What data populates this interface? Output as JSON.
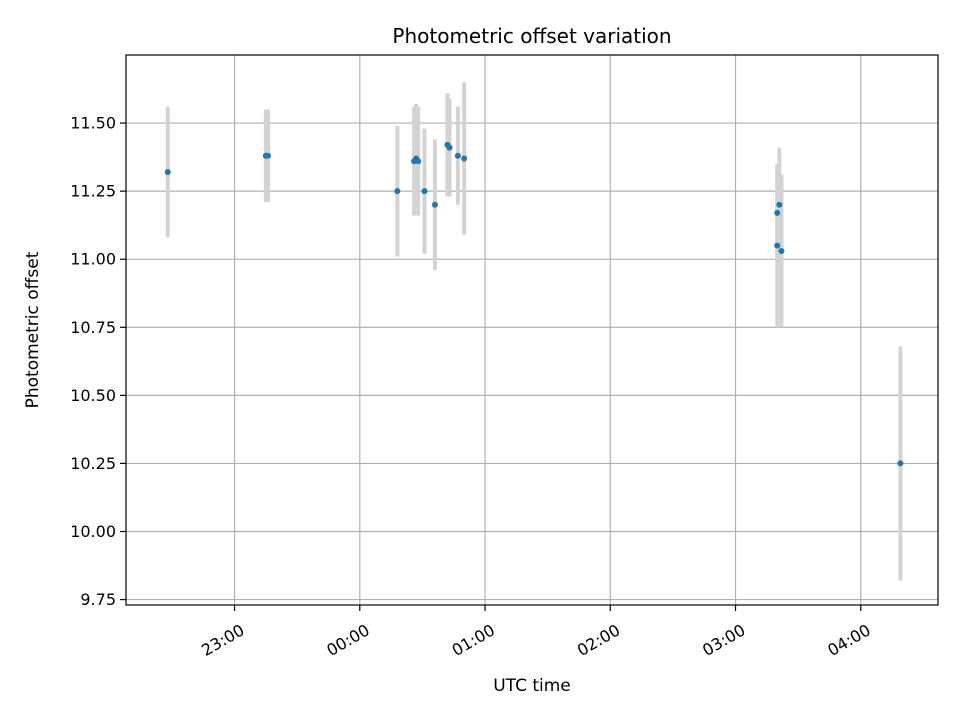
{
  "chart_data": {
    "type": "scatter",
    "title": "Photometric offset variation",
    "xlabel": "UTC time",
    "ylabel": "Photometric offset",
    "xlim": [
      "22:08",
      "04:37"
    ],
    "ylim": [
      9.73,
      11.75
    ],
    "grid": true,
    "x_ticks": [
      "23:00",
      "00:00",
      "01:00",
      "02:00",
      "03:00",
      "04:00"
    ],
    "y_ticks": [
      "9.75",
      "10.00",
      "10.25",
      "10.50",
      "10.75",
      "11.00",
      "11.25",
      "11.50"
    ],
    "point_color": "#1f77b4",
    "errorbar_color": "#d3d3d3",
    "points": [
      {
        "x": "22:28",
        "y": 11.32,
        "err": 0.24
      },
      {
        "x": "23:15",
        "y": 11.38,
        "err": 0.17
      },
      {
        "x": "23:16",
        "y": 11.38,
        "err": 0.17
      },
      {
        "x": "00:18",
        "y": 11.25,
        "err": 0.24
      },
      {
        "x": "00:26",
        "y": 11.36,
        "err": 0.2
      },
      {
        "x": "00:27",
        "y": 11.37,
        "err": 0.2
      },
      {
        "x": "00:28",
        "y": 11.36,
        "err": 0.2
      },
      {
        "x": "00:31",
        "y": 11.25,
        "err": 0.23
      },
      {
        "x": "00:36",
        "y": 11.2,
        "err": 0.24
      },
      {
        "x": "00:42",
        "y": 11.42,
        "err": 0.19
      },
      {
        "x": "00:43",
        "y": 11.41,
        "err": 0.18
      },
      {
        "x": "00:47",
        "y": 11.38,
        "err": 0.18
      },
      {
        "x": "00:50",
        "y": 11.37,
        "err": 0.28
      },
      {
        "x": "03:20",
        "y": 11.05,
        "err": 0.3
      },
      {
        "x": "03:20",
        "y": 11.17,
        "err": 0.18
      },
      {
        "x": "03:21",
        "y": 11.2,
        "err": 0.21
      },
      {
        "x": "03:22",
        "y": 11.03,
        "err": 0.28
      },
      {
        "x": "04:19",
        "y": 10.25,
        "err": 0.43
      }
    ]
  }
}
